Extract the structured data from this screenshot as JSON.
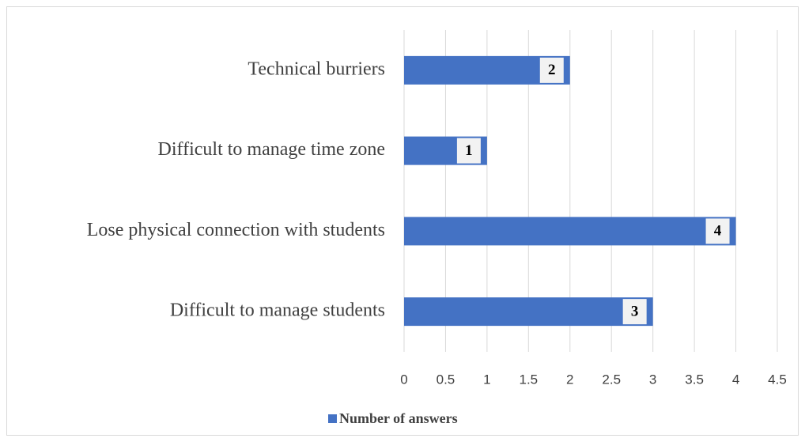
{
  "chart_data": {
    "type": "bar",
    "orientation": "horizontal",
    "categories": [
      "Technical burriers",
      "Difficult to manage time zone",
      "Lose physical connection with students",
      "Difficult to manage students"
    ],
    "series": [
      {
        "name": "Number of answers",
        "color": "#4472c4",
        "values": [
          2,
          1,
          4,
          3
        ]
      }
    ],
    "xlim": [
      0,
      4.5
    ],
    "xticks": [
      0,
      0.5,
      1,
      1.5,
      2,
      2.5,
      3,
      3.5,
      4,
      4.5
    ],
    "grid": true,
    "legend": "bottom"
  }
}
